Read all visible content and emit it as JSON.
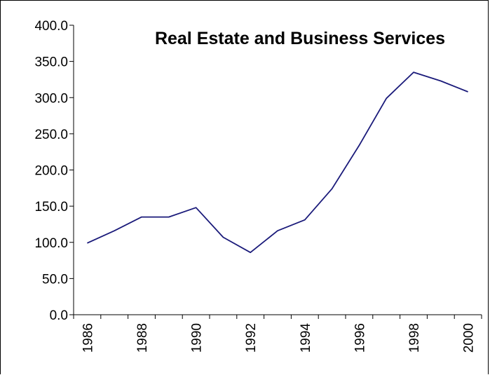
{
  "chart_data": {
    "type": "line",
    "title": "Real Estate and Business Services",
    "xlabel": "",
    "ylabel": "",
    "x": [
      1986,
      1987,
      1988,
      1989,
      1990,
      1991,
      1992,
      1993,
      1994,
      1995,
      1996,
      1997,
      1998,
      1999,
      2000
    ],
    "x_tick_labels": [
      "1986",
      "1988",
      "1990",
      "1992",
      "1994",
      "1996",
      "1998",
      "2000"
    ],
    "y_tick_labels": [
      "0.0",
      "50.0",
      "100.0",
      "150.0",
      "200.0",
      "250.0",
      "300.0",
      "350.0",
      "400.0"
    ],
    "series": [
      {
        "values": [
          99,
          116,
          135,
          135,
          148,
          107,
          86,
          116,
          131,
          174,
          234,
          299,
          335,
          323,
          308
        ]
      }
    ],
    "ylim": [
      0,
      400
    ],
    "grid": false,
    "legend": "none",
    "line_color": "#1a1a7a"
  }
}
